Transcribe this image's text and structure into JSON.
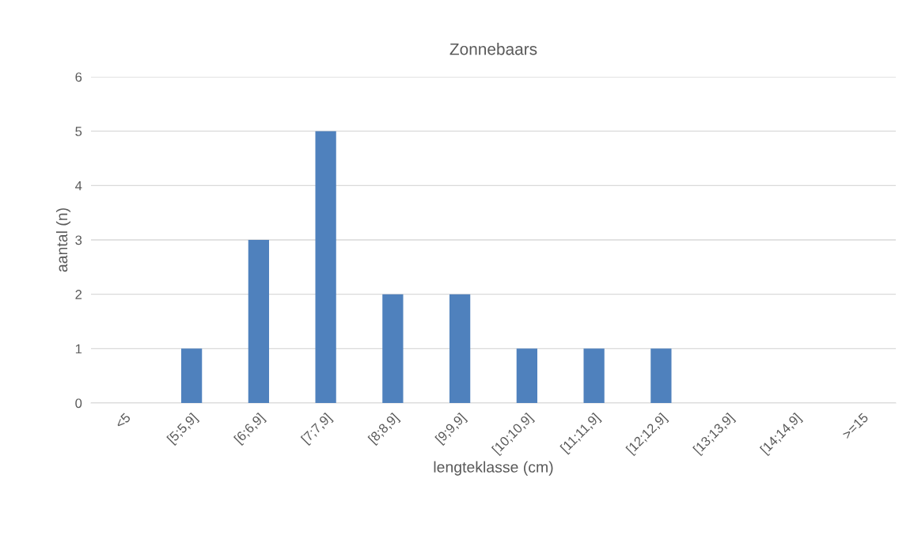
{
  "chart_data": {
    "type": "bar",
    "title": "Zonnebaars",
    "xlabel": "lengteklasse (cm)",
    "ylabel": "aantal (n)",
    "categories": [
      "<5",
      "[5;5,9]",
      "[6;6,9]",
      "[7;7,9]",
      "[8;8,9]",
      "[9;9,9]",
      "[10;10,9]",
      "[11;11,9]",
      "[12;12,9]",
      "[13;13,9]",
      "[14;14,9]",
      ">=15"
    ],
    "values": [
      0,
      1,
      3,
      5,
      2,
      2,
      1,
      1,
      1,
      0,
      0,
      0
    ],
    "color": "#4f81bd",
    "ylim": [
      0,
      6
    ],
    "yticks": [
      0,
      1,
      2,
      3,
      4,
      5,
      6
    ],
    "grid": "y",
    "legend": false
  }
}
